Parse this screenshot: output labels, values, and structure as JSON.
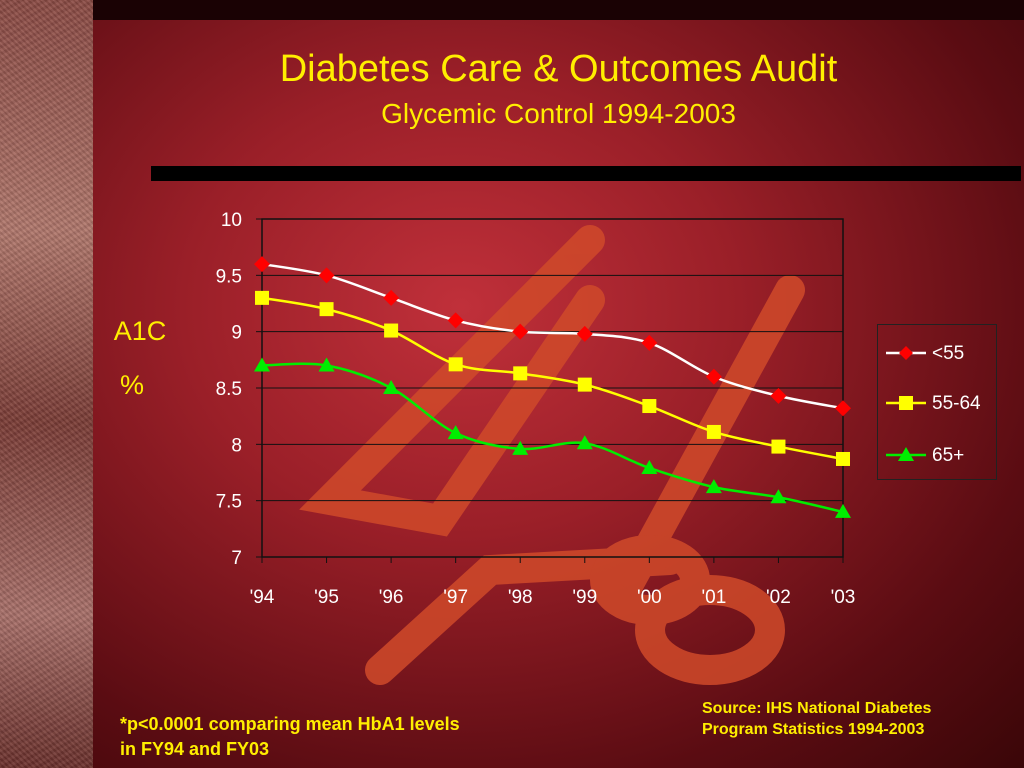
{
  "slide": {
    "title": "Diabetes Care & Outcomes Audit",
    "subtitle": "Glycemic Control 1994-2003",
    "y_title_line1": "A1C",
    "y_title_line2": "%",
    "footnote_line1": "*p<0.0001 comparing mean HbA1 levels",
    "footnote_line2": "in FY94 and FY03",
    "source_line1": "Source: IHS National Diabetes",
    "source_line2": "Program Statistics 1994-2003",
    "colors": {
      "title_text": "#ffee00",
      "background": "#9a1f28"
    }
  },
  "chart_data": {
    "type": "line",
    "categories": [
      "'94",
      "'95",
      "'96",
      "'97",
      "'98",
      "'99",
      "'00",
      "'01",
      "'02",
      "'03"
    ],
    "ylim": [
      7,
      10
    ],
    "yticks": [
      "10",
      "9.5",
      "9",
      "8.5",
      "8",
      "7.5",
      "7"
    ],
    "ytick_values": [
      10,
      9.5,
      9,
      8.5,
      8,
      7.5,
      7
    ],
    "grid": true,
    "legend_position": "right",
    "series": [
      {
        "name": "<55",
        "marker": "diamond",
        "line_color": "#ffffff",
        "marker_color": "#ff0000",
        "values": [
          9.6,
          9.5,
          9.3,
          9.1,
          9.0,
          8.98,
          8.9,
          8.6,
          8.43,
          8.32
        ]
      },
      {
        "name": "55-64",
        "marker": "square",
        "line_color": "#ffff00",
        "marker_color": "#ffff00",
        "values": [
          9.3,
          9.2,
          9.01,
          8.71,
          8.63,
          8.53,
          8.34,
          8.11,
          7.98,
          7.87
        ]
      },
      {
        "name": "65+",
        "marker": "triangle",
        "line_color": "#00ee00",
        "marker_color": "#00ee00",
        "values": [
          8.7,
          8.7,
          8.5,
          8.1,
          7.96,
          8.01,
          7.79,
          7.62,
          7.53,
          7.4
        ]
      }
    ]
  }
}
